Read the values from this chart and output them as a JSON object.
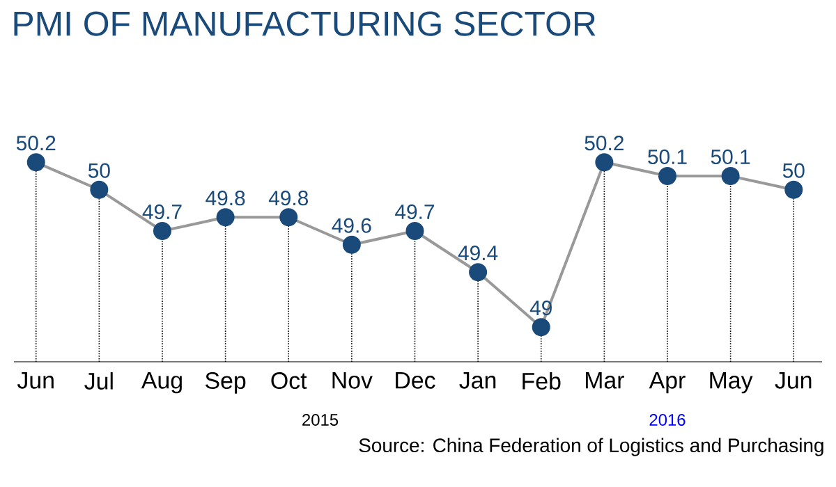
{
  "chart_data": {
    "type": "line",
    "title": "PMI OF MANUFACTURING SECTOR",
    "categories": [
      "Jun",
      "Jul",
      "Aug",
      "Sep",
      "Oct",
      "Nov",
      "Dec",
      "Jan",
      "Feb",
      "Mar",
      "Apr",
      "May",
      "Jun"
    ],
    "series": [
      {
        "color": "#999999",
        "values": [
          50.2,
          50,
          49.7,
          49.8,
          49.8,
          49.6,
          49.7,
          49.4,
          49,
          50.2,
          50.1,
          50.1,
          50
        ]
      }
    ],
    "marker": "circle",
    "grid": "x",
    "data_labels": true,
    "annotations": [
      "2015",
      "2016",
      "Source: China Federation of Logistics and Purchasing"
    ]
  }
}
